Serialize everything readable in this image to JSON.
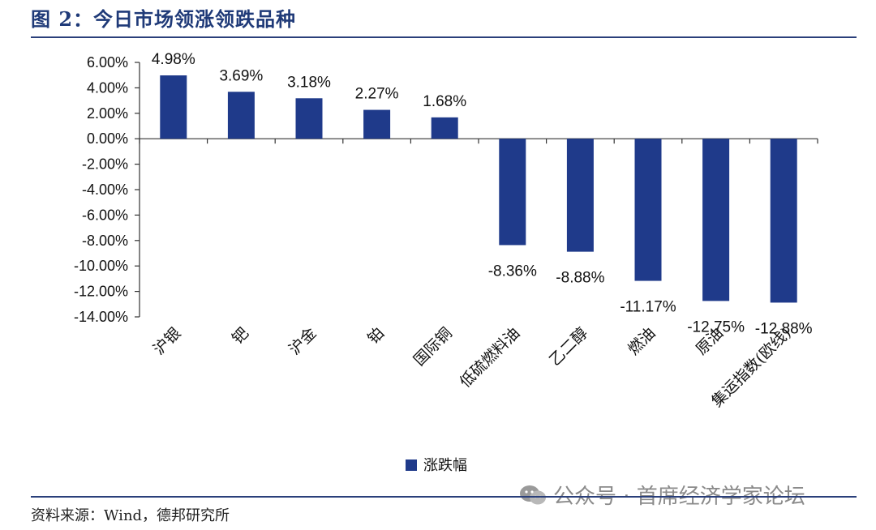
{
  "header": {
    "title": "图 2：今日市场领涨领跌品种"
  },
  "footer": {
    "source": "资料来源：Wind，德邦研究所"
  },
  "watermark": {
    "text": "公众号 · 首席经济学家论坛"
  },
  "colors": {
    "bar": "#1f3a8a",
    "rule": "#2a3f7a"
  },
  "chart_data": {
    "type": "bar",
    "title": "",
    "xlabel": "",
    "ylabel": "",
    "ylim": [
      -14,
      6
    ],
    "yticks": [
      6,
      4,
      2,
      0,
      -2,
      -4,
      -6,
      -8,
      -10,
      -12,
      -14
    ],
    "ytick_labels": [
      "6.00%",
      "4.00%",
      "2.00%",
      "0.00%",
      "-2.00%",
      "-4.00%",
      "-6.00%",
      "-8.00%",
      "-10.00%",
      "-12.00%",
      "-14.00%"
    ],
    "categories": [
      "沪银",
      "钯",
      "沪金",
      "铂",
      "国际铜",
      "低硫燃料油",
      "乙二醇",
      "燃油",
      "原油",
      "集运指数(欧线)"
    ],
    "series": [
      {
        "name": "涨跌幅",
        "values": [
          4.98,
          3.69,
          3.18,
          2.27,
          1.68,
          -8.36,
          -8.88,
          -11.17,
          -12.75,
          -12.88
        ],
        "labels": [
          "4.98%",
          "3.69%",
          "3.18%",
          "2.27%",
          "1.68%",
          "-8.36%",
          "-8.88%",
          "-11.17%",
          "-12.75%",
          "-12.88%"
        ]
      }
    ],
    "legend": "bottom-center",
    "grid": false
  }
}
